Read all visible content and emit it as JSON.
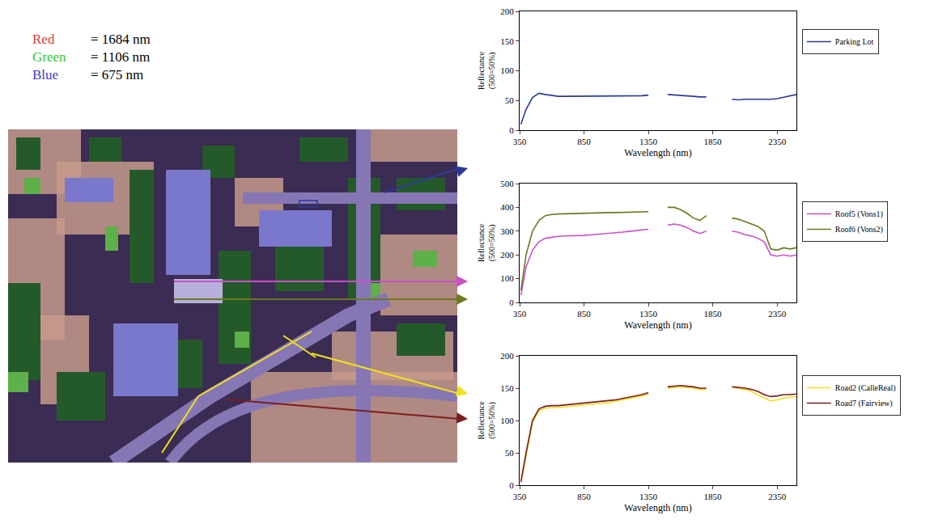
{
  "image_legend": [
    {
      "name": "Red",
      "text": "= 1684 nm",
      "color": "#e03a3a"
    },
    {
      "name": "Green",
      "text": "= 1106 nm",
      "color": "#33c433"
    },
    {
      "name": "Blue",
      "text": "= 675 nm",
      "color": "#3a3ad0"
    }
  ],
  "chart_data": [
    {
      "type": "line",
      "x_label": "Wavelength (nm)",
      "y_label": "Reflectance\n(500=50%)",
      "xlim": [
        350,
        2500
      ],
      "xticks": [
        350,
        850,
        1350,
        1850,
        2350
      ],
      "ylim": [
        0,
        200
      ],
      "yticks": [
        0,
        50,
        100,
        150,
        200
      ],
      "legend": "right",
      "x": [
        360,
        400,
        450,
        500,
        550,
        600,
        650,
        700,
        750,
        800,
        850,
        900,
        950,
        1000,
        1050,
        1100,
        1150,
        1200,
        1250,
        1300,
        1350,
        1400,
        1450,
        1500,
        1550,
        1600,
        1650,
        1700,
        1750,
        1800,
        1850,
        1900,
        1950,
        2000,
        2050,
        2100,
        2150,
        2200,
        2250,
        2300,
        2350,
        2400,
        2450,
        2500
      ],
      "series": [
        {
          "name": "Parking Lot",
          "color": "#2b3a9a",
          "values": [
            10,
            35,
            55,
            62,
            60,
            58,
            57,
            57,
            57,
            57,
            57,
            57,
            57,
            57,
            58,
            58,
            58,
            58,
            58,
            58,
            59,
            null,
            null,
            60,
            59,
            58,
            57,
            57,
            56,
            56,
            null,
            null,
            null,
            52,
            51,
            52,
            52,
            51,
            51,
            52,
            53,
            55,
            57,
            60
          ]
        }
      ]
    },
    {
      "type": "line",
      "x_label": "Wavelength (nm)",
      "y_label": "Reflectance\n(500=50%)",
      "xlim": [
        350,
        2500
      ],
      "xticks": [
        350,
        850,
        1350,
        1850,
        2350
      ],
      "ylim": [
        0,
        500
      ],
      "yticks": [
        0,
        100,
        200,
        300,
        400,
        500
      ],
      "legend": "right",
      "x": [
        360,
        400,
        450,
        500,
        550,
        600,
        650,
        700,
        750,
        800,
        850,
        900,
        950,
        1000,
        1050,
        1100,
        1150,
        1200,
        1250,
        1300,
        1350,
        1400,
        1450,
        1500,
        1550,
        1600,
        1650,
        1700,
        1750,
        1800,
        1850,
        1900,
        1950,
        2000,
        2050,
        2100,
        2150,
        2200,
        2250,
        2300,
        2350,
        2400,
        2450,
        2500
      ],
      "series": [
        {
          "name": "Roof5 (Vons1)",
          "color": "#c850c8",
          "values": [
            30,
            150,
            220,
            255,
            270,
            275,
            278,
            280,
            280,
            281,
            282,
            284,
            286,
            288,
            290,
            293,
            296,
            299,
            302,
            305,
            308,
            null,
            null,
            325,
            330,
            325,
            315,
            300,
            290,
            300,
            null,
            null,
            null,
            300,
            295,
            285,
            280,
            270,
            255,
            200,
            195,
            200,
            195,
            200
          ]
        },
        {
          "name": "Roof6 (Vons2)",
          "color": "#6b7a1e",
          "values": [
            50,
            200,
            300,
            345,
            365,
            370,
            372,
            373,
            374,
            375,
            376,
            376,
            377,
            377,
            378,
            378,
            379,
            379,
            380,
            380,
            382,
            null,
            null,
            400,
            400,
            390,
            375,
            355,
            345,
            365,
            null,
            null,
            null,
            355,
            350,
            340,
            330,
            320,
            300,
            225,
            220,
            230,
            225,
            230
          ]
        }
      ]
    },
    {
      "type": "line",
      "x_label": "Wavelength (nm)",
      "y_label": "Reflectance\n(500=50%)",
      "xlim": [
        350,
        2500
      ],
      "xticks": [
        350,
        850,
        1350,
        1850,
        2350
      ],
      "ylim": [
        0,
        200
      ],
      "yticks": [
        0,
        50,
        100,
        150,
        200
      ],
      "legend": "right",
      "x": [
        360,
        400,
        450,
        500,
        550,
        600,
        650,
        700,
        750,
        800,
        850,
        900,
        950,
        1000,
        1050,
        1100,
        1150,
        1200,
        1250,
        1300,
        1350,
        1400,
        1450,
        1500,
        1550,
        1600,
        1650,
        1700,
        1750,
        1800,
        1850,
        1900,
        1950,
        2000,
        2050,
        2100,
        2150,
        2200,
        2250,
        2300,
        2350,
        2400,
        2450,
        2500
      ],
      "series": [
        {
          "name": "Road2 (CalleReal)",
          "color": "#f0e020",
          "values": [
            5,
            48,
            97,
            115,
            119,
            120,
            120,
            121,
            122,
            123,
            124,
            125,
            126,
            127,
            128,
            130,
            132,
            134,
            136,
            138,
            141,
            null,
            null,
            150,
            151,
            152,
            151,
            150,
            148,
            148,
            null,
            null,
            null,
            152,
            150,
            148,
            145,
            140,
            134,
            130,
            132,
            135,
            136,
            137
          ]
        },
        {
          "name": "Road7 (Fairview)",
          "color": "#7a1e1e",
          "values": [
            5,
            50,
            100,
            118,
            122,
            123,
            123,
            124,
            125,
            126,
            127,
            128,
            129,
            130,
            131,
            132,
            134,
            136,
            138,
            140,
            143,
            null,
            null,
            152,
            153,
            154,
            153,
            152,
            150,
            150,
            null,
            null,
            null,
            152,
            151,
            150,
            148,
            145,
            140,
            137,
            138,
            140,
            140,
            141
          ]
        }
      ]
    }
  ]
}
